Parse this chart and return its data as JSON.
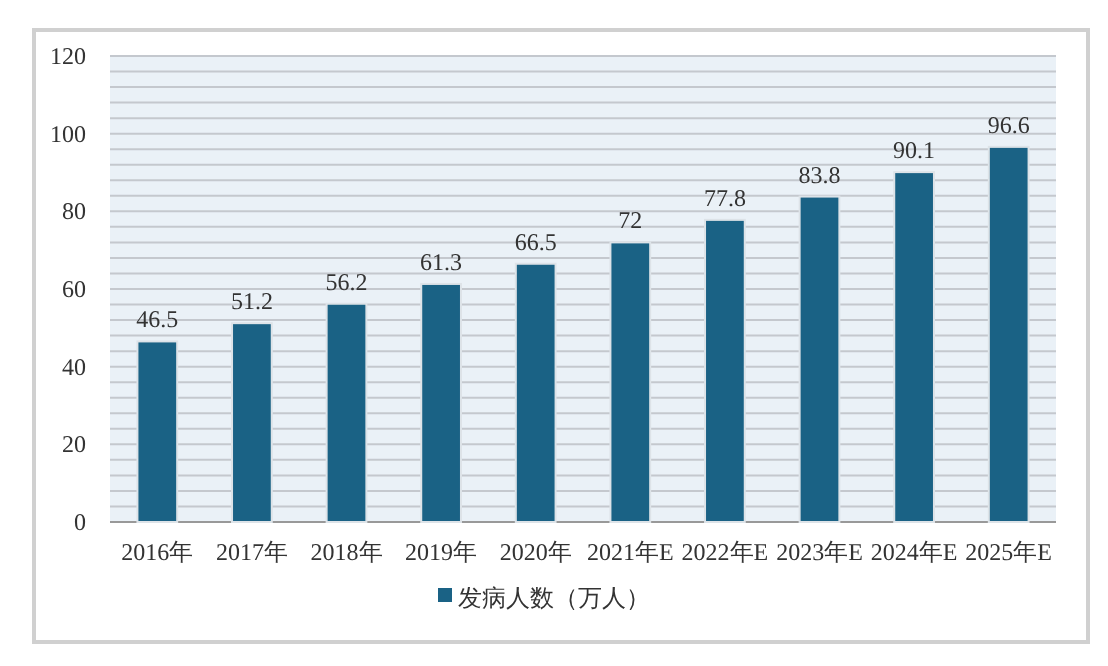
{
  "chart_data": {
    "type": "bar",
    "categories": [
      "2016年",
      "2017年",
      "2018年",
      "2019年",
      "2020年",
      "2021年E",
      "2022年E",
      "2023年E",
      "2024年E",
      "2025年E"
    ],
    "series": [
      {
        "name": "发病人数（万人）",
        "color": "#1a6285",
        "values": [
          46.5,
          51.2,
          56.2,
          61.3,
          66.5,
          72,
          77.8,
          83.8,
          90.1,
          96.6
        ]
      }
    ],
    "ylim": [
      0,
      120
    ],
    "yticks": [
      0,
      {
        "value": 4,
        "label": null
      },
      {
        "value": 8,
        "label": null
      },
      {
        "value": 12,
        "label": null
      },
      {
        "value": 16,
        "label": null
      },
      20,
      {
        "value": 24,
        "label": null
      },
      {
        "value": 28,
        "label": null
      },
      {
        "value": 32,
        "label": null
      },
      {
        "value": 36,
        "label": null
      },
      40,
      {
        "value": 44,
        "label": null
      },
      {
        "value": 48,
        "label": null
      },
      {
        "value": 52,
        "label": null
      },
      {
        "value": 56,
        "label": null
      },
      60,
      {
        "value": 64,
        "label": null
      },
      {
        "value": 68,
        "label": null
      },
      {
        "value": 72,
        "label": null
      },
      {
        "value": 76,
        "label": null
      },
      80,
      {
        "value": 84,
        "label": null
      },
      {
        "value": 88,
        "label": null
      },
      {
        "value": 92,
        "label": null
      },
      {
        "value": 96,
        "label": null
      },
      100,
      {
        "value": 104,
        "label": null
      },
      {
        "value": 108,
        "label": null
      },
      {
        "value": 112,
        "label": null
      },
      {
        "value": 116,
        "label": null
      },
      120
    ],
    "grid": "y",
    "data_labels": true,
    "legend": "bottom"
  }
}
